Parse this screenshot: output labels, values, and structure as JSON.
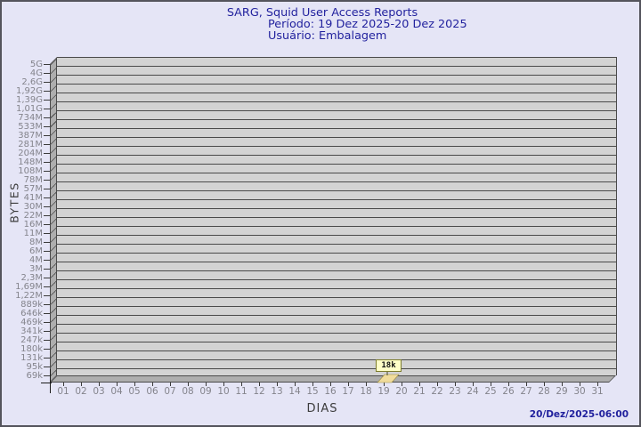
{
  "header": {
    "title": "SARG, Squid User Access Reports",
    "period": "Período: 19 Dez 2025-20 Dez 2025",
    "user": "Usuário: Embalagem"
  },
  "y_axis": {
    "title": "BYTES",
    "labels": [
      "5G",
      "4G",
      "2,6G",
      "1,92G",
      "1,39G",
      "1,01G",
      "734M",
      "533M",
      "387M",
      "281M",
      "204M",
      "148M",
      "108M",
      "78M",
      "57M",
      "41M",
      "30M",
      "22M",
      "16M",
      "11M",
      "8M",
      "6M",
      "4M",
      "3M",
      "2,3M",
      "1,69M",
      "1,22M",
      "889k",
      "646k",
      "469k",
      "341k",
      "247k",
      "180k",
      "131k",
      "95k",
      "69k"
    ]
  },
  "x_axis": {
    "title": "DIAS",
    "labels": [
      "01",
      "02",
      "03",
      "04",
      "05",
      "06",
      "07",
      "08",
      "09",
      "10",
      "11",
      "12",
      "13",
      "14",
      "15",
      "16",
      "17",
      "18",
      "19",
      "20",
      "21",
      "22",
      "23",
      "24",
      "25",
      "26",
      "27",
      "28",
      "29",
      "30",
      "31"
    ]
  },
  "data_point": {
    "label": "18k",
    "day": "19"
  },
  "footer": {
    "timestamp": "20/Dez/2025-06:00"
  },
  "colors": {
    "background": "#e5e5f6",
    "plot_fill": "#d3d3d3",
    "wall_fill": "#aeaeae",
    "gridline": "#4a4a4a",
    "title_text": "#22229e",
    "tick_text": "#84848c",
    "point_box_bg": "#ffffc8",
    "point_box_border": "#7c7c2c",
    "bar_fill": "#f0dc9c"
  },
  "chart_data": {
    "type": "bar",
    "title": "SARG, Squid User Access Reports",
    "subtitle": [
      "Período: 19 Dez 2025-20 Dez 2025",
      "Usuário: Embalagem"
    ],
    "xlabel": "DIAS",
    "ylabel": "BYTES",
    "x": [
      "01",
      "02",
      "03",
      "04",
      "05",
      "06",
      "07",
      "08",
      "09",
      "10",
      "11",
      "12",
      "13",
      "14",
      "15",
      "16",
      "17",
      "18",
      "19",
      "20",
      "21",
      "22",
      "23",
      "24",
      "25",
      "26",
      "27",
      "28",
      "29",
      "30",
      "31"
    ],
    "values": [
      0,
      0,
      0,
      0,
      0,
      0,
      0,
      0,
      0,
      0,
      0,
      0,
      0,
      0,
      0,
      0,
      0,
      0,
      18000,
      0,
      0,
      0,
      0,
      0,
      0,
      0,
      0,
      0,
      0,
      0,
      0
    ],
    "value_labels": [
      null,
      null,
      null,
      null,
      null,
      null,
      null,
      null,
      null,
      null,
      null,
      null,
      null,
      null,
      null,
      null,
      null,
      null,
      "18k",
      null,
      null,
      null,
      null,
      null,
      null,
      null,
      null,
      null,
      null,
      null,
      null
    ],
    "y_scale": "log",
    "y_ticks": [
      "5G",
      "4G",
      "2,6G",
      "1,92G",
      "1,39G",
      "1,01G",
      "734M",
      "533M",
      "387M",
      "281M",
      "204M",
      "148M",
      "108M",
      "78M",
      "57M",
      "41M",
      "30M",
      "22M",
      "16M",
      "11M",
      "8M",
      "6M",
      "4M",
      "3M",
      "2,3M",
      "1,69M",
      "1,22M",
      "889k",
      "646k",
      "469k",
      "341k",
      "247k",
      "180k",
      "131k",
      "95k",
      "69k"
    ],
    "ylim": [
      "54k",
      "5G"
    ],
    "grid": true,
    "legend": null,
    "style": "pseudo-3d",
    "timestamp": "20/Dez/2025-06:00"
  }
}
